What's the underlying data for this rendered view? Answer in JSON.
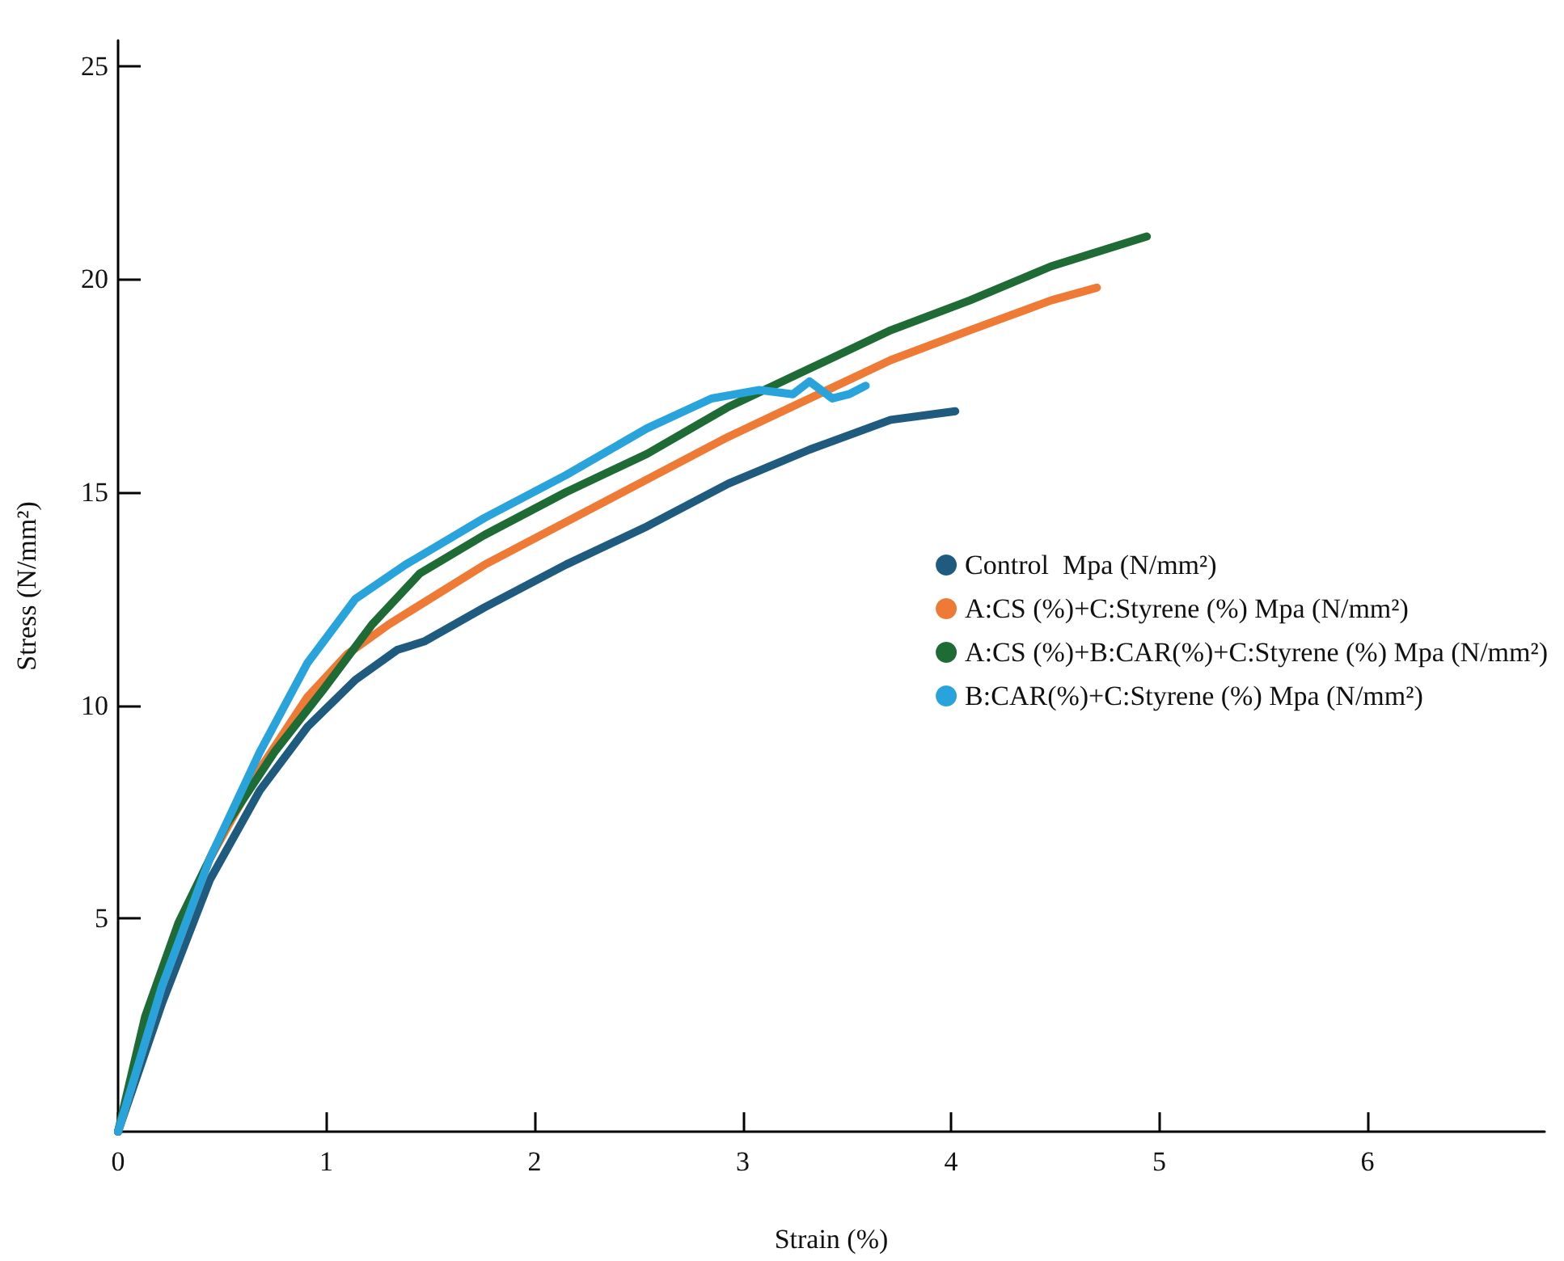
{
  "chart_data": {
    "type": "line",
    "xlabel": "Strain (%)",
    "ylabel": "Stress (N/mm²)",
    "xlim": [
      0,
      6.85
    ],
    "xticks": [
      0,
      1,
      2,
      3,
      4,
      5,
      6
    ],
    "ylim": [
      0,
      25.6
    ],
    "yticks": [
      5,
      10,
      15,
      20,
      25
    ],
    "grid": false,
    "legend": "right",
    "marker": "none",
    "line_style": "solid",
    "series": [
      {
        "name": "Control  Mpa (N/mm²)",
        "color": "#1f5b7f",
        "x": [
          0,
          0.21,
          0.44,
          0.68,
          0.91,
          1.14,
          1.34,
          1.47,
          1.76,
          2.15,
          2.54,
          2.93,
          3.32,
          3.71,
          4.02
        ],
        "values": [
          0,
          3.0,
          5.9,
          8.0,
          9.5,
          10.6,
          11.3,
          11.5,
          12.3,
          13.3,
          14.2,
          15.2,
          16.0,
          16.7,
          16.9
        ]
      },
      {
        "name": "A:CS (%)+C:Styrene (%) Mpa (N/mm²)",
        "color": "#ee7a35",
        "x": [
          0,
          0.21,
          0.44,
          0.68,
          0.91,
          1.1,
          1.3,
          1.76,
          2.15,
          2.54,
          2.93,
          3.32,
          3.71,
          4.09,
          4.48,
          4.7
        ],
        "values": [
          0,
          3.4,
          6.4,
          8.5,
          10.2,
          11.2,
          11.9,
          13.3,
          14.3,
          15.3,
          16.3,
          17.2,
          18.1,
          18.8,
          19.5,
          19.8
        ]
      },
      {
        "name": "A:CS (%)+B:CAR(%)+C:Styrene (%) Mpa (N/mm²)",
        "color": "#1e6b35",
        "x": [
          0,
          0.13,
          0.29,
          0.52,
          0.75,
          0.99,
          1.22,
          1.45,
          1.76,
          2.15,
          2.54,
          2.93,
          3.32,
          3.71,
          4.09,
          4.48,
          4.94
        ],
        "values": [
          0,
          2.7,
          4.9,
          7.2,
          8.9,
          10.4,
          11.9,
          13.1,
          14.0,
          15.0,
          15.9,
          17.0,
          17.9,
          18.8,
          19.5,
          20.3,
          21.0
        ]
      },
      {
        "name": "B:CAR(%)+C:Styrene (%) Mpa (N/mm²)",
        "color": "#29a3dc",
        "x": [
          0,
          0.21,
          0.44,
          0.68,
          0.91,
          1.14,
          1.38,
          1.76,
          2.15,
          2.54,
          2.85,
          3.08,
          3.24,
          3.32,
          3.43,
          3.51,
          3.59
        ],
        "values": [
          0,
          3.4,
          6.4,
          8.9,
          11.0,
          12.5,
          13.3,
          14.4,
          15.4,
          16.5,
          17.2,
          17.4,
          17.3,
          17.6,
          17.2,
          17.3,
          17.5
        ]
      }
    ]
  }
}
